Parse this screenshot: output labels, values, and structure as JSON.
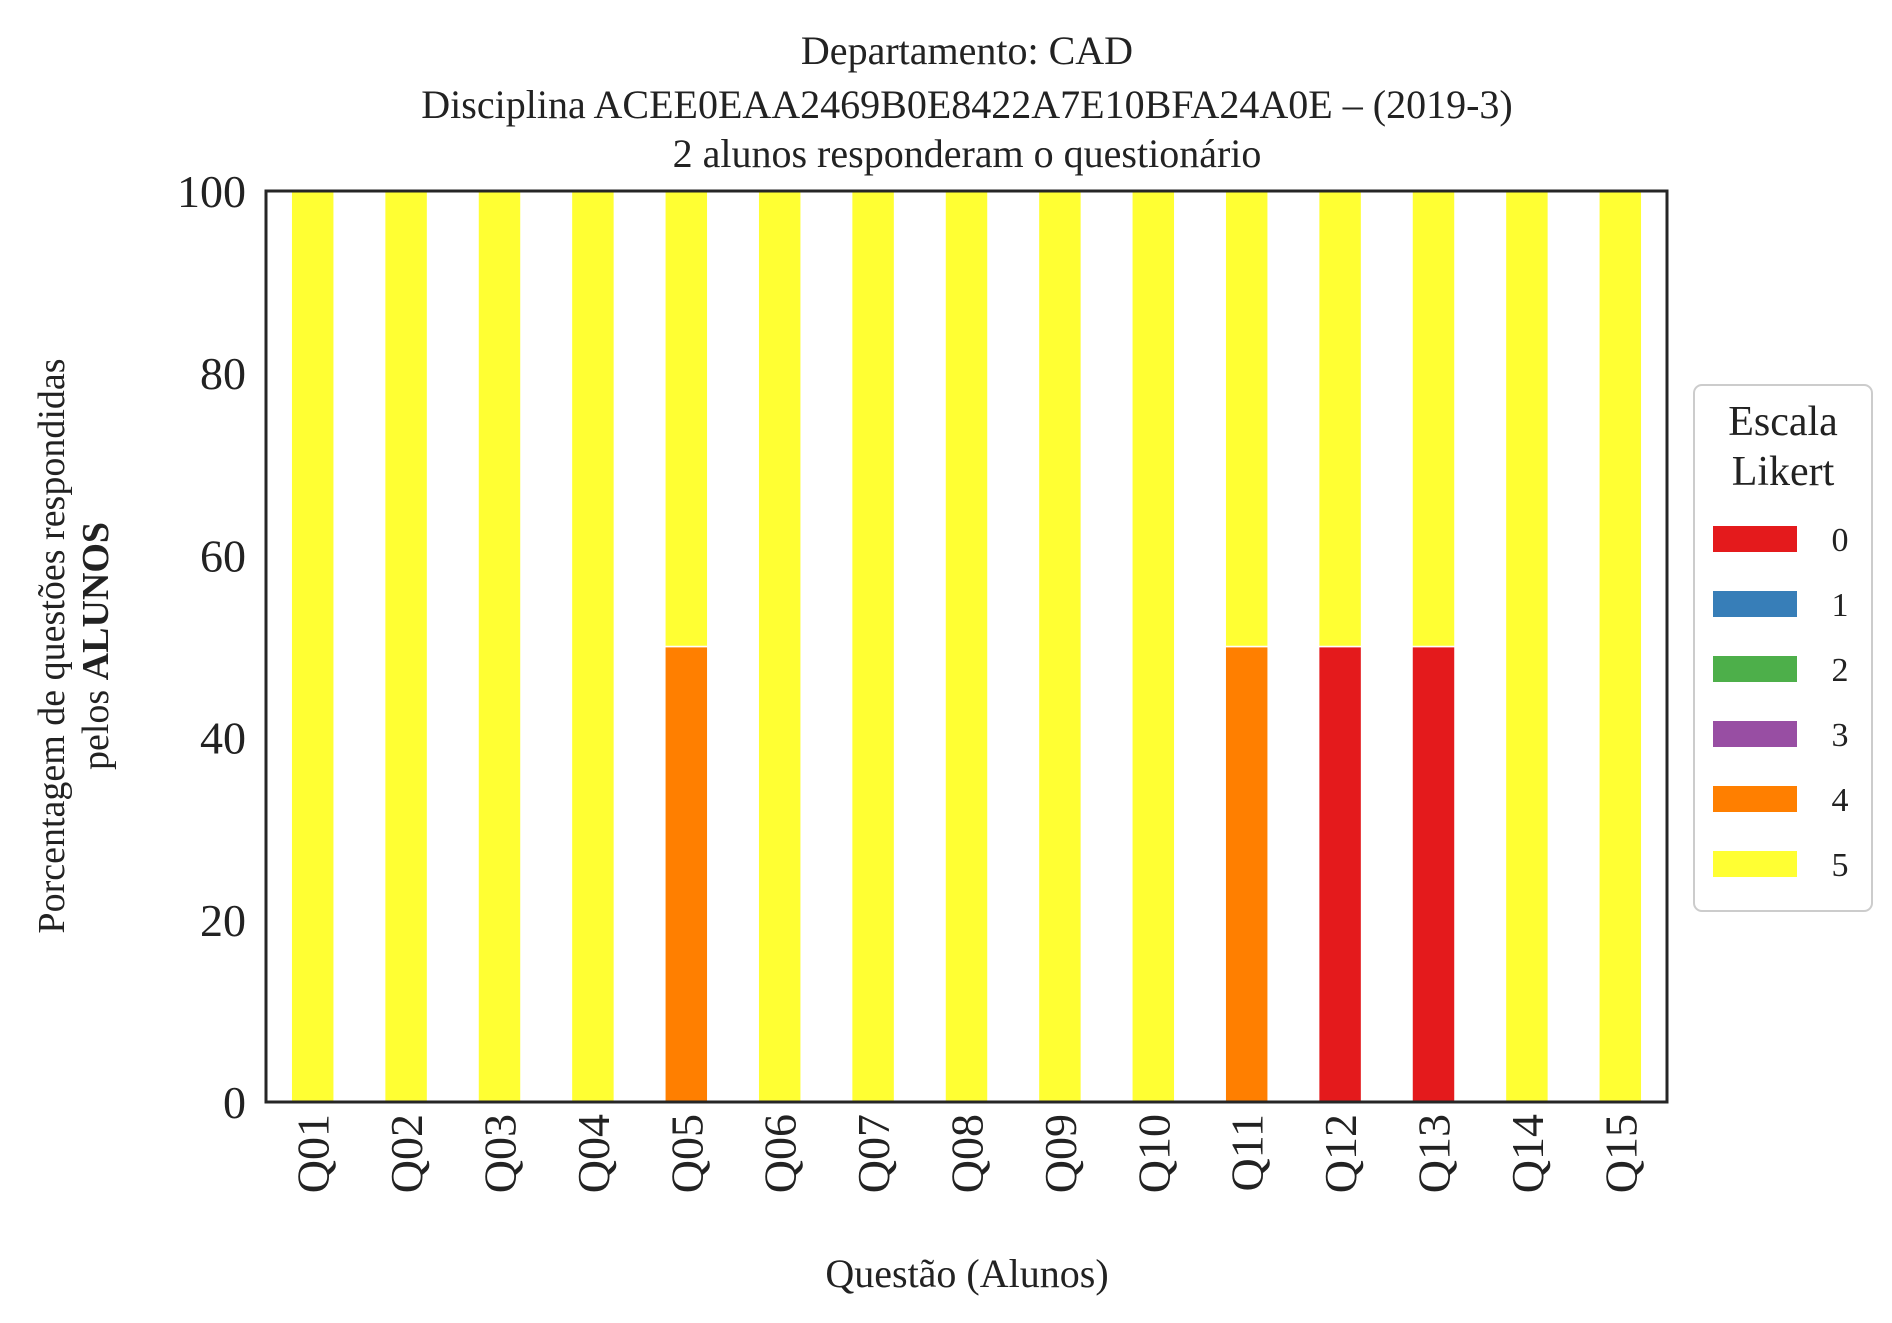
{
  "chart_data": {
    "type": "bar",
    "stacked": true,
    "title_lines": [
      "Departamento: CAD",
      "Disciplina ACEE0EAA2469B0E8422A7E10BFA24A0E – (2019-3)",
      "2 alunos responderam o questionário"
    ],
    "xlabel": "Questão (Alunos)",
    "ylabel_line1": "Porcentagem de questões respondidas",
    "ylabel_line2_prefix": "pelos ",
    "ylabel_line2_bold": "ALUNOS",
    "ylim": [
      0,
      100
    ],
    "yticks": [
      0,
      20,
      40,
      60,
      80,
      100
    ],
    "grid": false,
    "categories": [
      "Q01",
      "Q02",
      "Q03",
      "Q04",
      "Q05",
      "Q06",
      "Q07",
      "Q08",
      "Q09",
      "Q10",
      "Q11",
      "Q12",
      "Q13",
      "Q14",
      "Q15"
    ],
    "legend": {
      "title_lines": [
        "Escala",
        "Likert"
      ],
      "placement": "right"
    },
    "series": [
      {
        "name": "0",
        "color": "#e41a1c",
        "values": [
          0,
          0,
          0,
          0,
          0,
          0,
          0,
          0,
          0,
          0,
          0,
          50,
          50,
          0,
          0
        ]
      },
      {
        "name": "1",
        "color": "#377eb8",
        "values": [
          0,
          0,
          0,
          0,
          0,
          0,
          0,
          0,
          0,
          0,
          0,
          0,
          0,
          0,
          0
        ]
      },
      {
        "name": "2",
        "color": "#4daf4a",
        "values": [
          0,
          0,
          0,
          0,
          0,
          0,
          0,
          0,
          0,
          0,
          0,
          0,
          0,
          0,
          0
        ]
      },
      {
        "name": "3",
        "color": "#984ea3",
        "values": [
          0,
          0,
          0,
          0,
          0,
          0,
          0,
          0,
          0,
          0,
          0,
          0,
          0,
          0,
          0
        ]
      },
      {
        "name": "4",
        "color": "#ff7f00",
        "values": [
          0,
          0,
          0,
          0,
          50,
          0,
          0,
          0,
          0,
          0,
          50,
          0,
          0,
          0,
          0
        ]
      },
      {
        "name": "5",
        "color": "#ffff33",
        "values": [
          100,
          100,
          100,
          100,
          50,
          100,
          100,
          100,
          100,
          100,
          50,
          50,
          50,
          100,
          100
        ]
      }
    ]
  }
}
